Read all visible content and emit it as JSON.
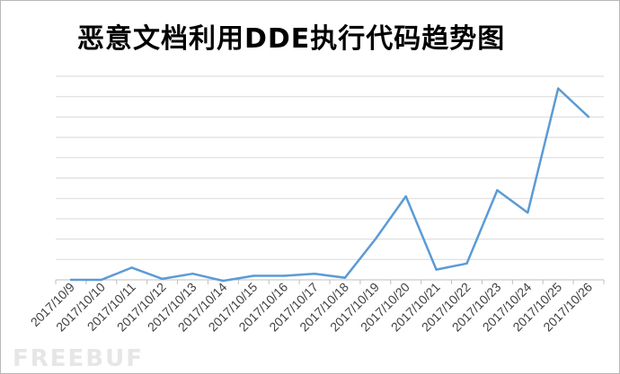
{
  "chart_data": {
    "type": "line",
    "title": "恶意文档利用DDE执行代码趋势图",
    "xlabel": "",
    "ylabel": "",
    "categories": [
      "2017/10/9",
      "2017/10/10",
      "2017/10/11",
      "2017/10/12",
      "2017/10/13",
      "2017/10/14",
      "2017/10/15",
      "2017/10/16",
      "2017/10/17",
      "2017/10/18",
      "2017/10/19",
      "2017/10/20",
      "2017/10/21",
      "2017/10/22",
      "2017/10/23",
      "2017/10/24",
      "2017/10/25",
      "2017/10/26"
    ],
    "series": [
      {
        "values": [
          0.0,
          0.0,
          0.6,
          0.05,
          0.3,
          -0.05,
          0.2,
          0.2,
          0.3,
          0.1,
          2.0,
          4.1,
          0.5,
          0.8,
          4.4,
          3.3,
          9.4,
          8.0
        ]
      }
    ],
    "ylim": [
      0,
      10
    ],
    "gridlines": 10,
    "grid": true,
    "y_tick_labels_shown": false,
    "legend": false,
    "line_color": "#5b9bd5",
    "grid_color": "#d9d9d9"
  },
  "watermark": "FREEBUF"
}
